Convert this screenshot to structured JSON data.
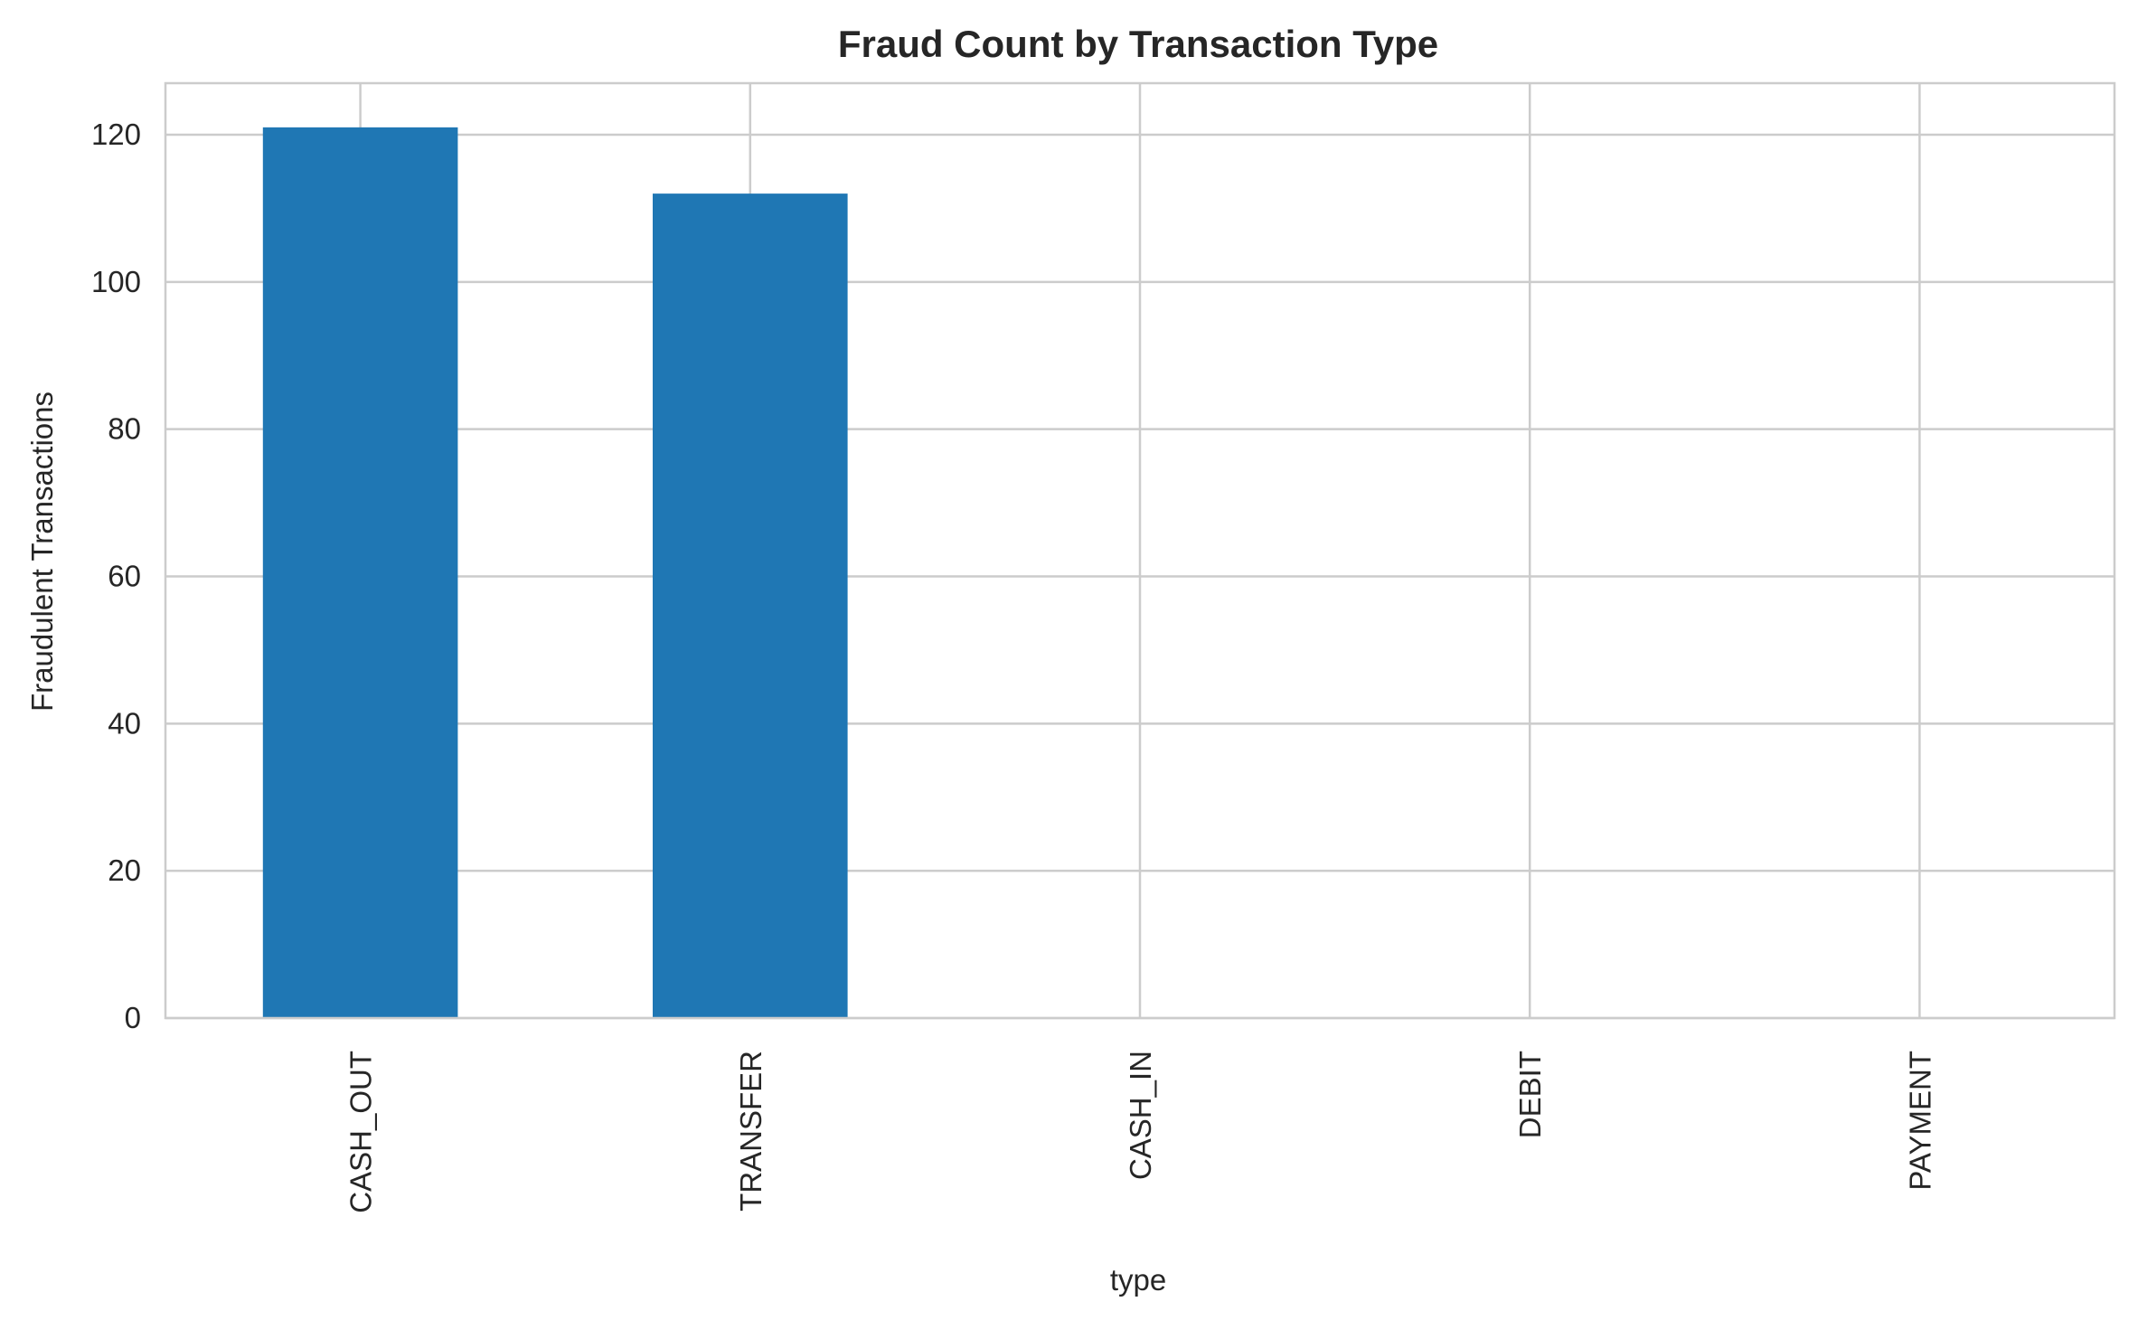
{
  "chart_data": {
    "type": "bar",
    "title": "Fraud Count by Transaction Type",
    "xlabel": "type",
    "ylabel": "Fraudulent Transactions",
    "categories": [
      "CASH_OUT",
      "TRANSFER",
      "CASH_IN",
      "DEBIT",
      "PAYMENT"
    ],
    "values": [
      121,
      112,
      0,
      0,
      0
    ],
    "ylim": [
      0,
      127
    ],
    "yticks": [
      0,
      20,
      40,
      60,
      80,
      100,
      120
    ],
    "grid": true,
    "legend": "none",
    "bar_color": "#1f77b4",
    "grid_color": "#cccccc",
    "axis_color": "#cccccc"
  }
}
